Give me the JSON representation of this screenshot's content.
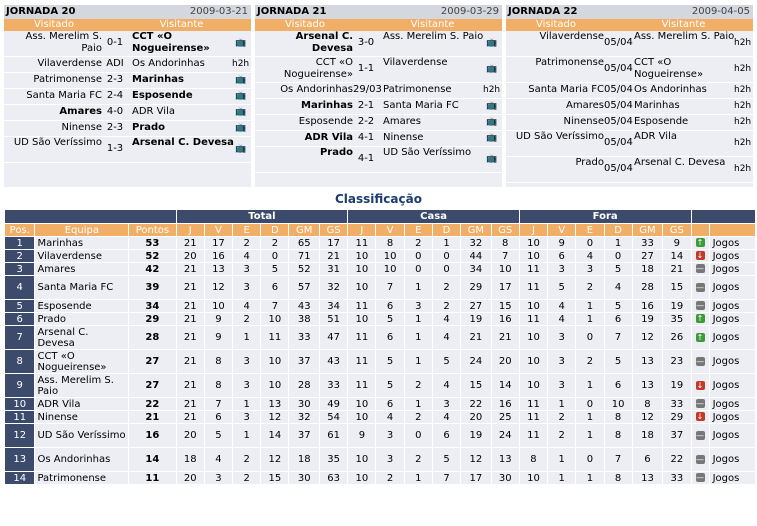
{
  "colors": {
    "header": "#d4d7de",
    "orange": "#f1ae66",
    "navy": "#3c4a6b",
    "rowbg": "#eceef3",
    "up": "#3f9b3a",
    "down": "#c23a2b",
    "equal": "#777777"
  },
  "jornadas": [
    {
      "title": "JORNADA 20",
      "date": "2009-03-21",
      "visited_label": "Visitado",
      "visitor_label": "Visitante",
      "games": [
        {
          "home": "Ass. Merelim S. Paio",
          "score": "0-1",
          "away": "CCT «O Nogueirense»",
          "extra": "tv-icon",
          "win": "away",
          "h": 2
        },
        {
          "home": "Vilaverdense",
          "score": "ADI",
          "away": "Os Andorinhas",
          "extra": "h2h",
          "win": "",
          "h": 1
        },
        {
          "home": "Patrimonense",
          "score": "2-3",
          "away": "Marinhas",
          "extra": "tv-icon",
          "win": "away",
          "h": 1
        },
        {
          "home": "Santa Maria FC",
          "score": "2-4",
          "away": "Esposende",
          "extra": "tv-icon",
          "win": "away",
          "h": 1
        },
        {
          "home": "Amares",
          "score": "4-0",
          "away": "ADR Vila",
          "extra": "tv-icon",
          "win": "home",
          "h": 1
        },
        {
          "home": "Ninense",
          "score": "2-3",
          "away": "Prado",
          "extra": "tv-icon",
          "win": "away",
          "h": 1
        },
        {
          "home": "UD São Veríssimo",
          "score": "1-3",
          "away": "Arsenal C. Devesa",
          "extra": "tv-icon",
          "win": "away",
          "h": 2
        }
      ]
    },
    {
      "title": "JORNADA 21",
      "date": "2009-03-29",
      "visited_label": "Visitado",
      "visitor_label": "Visitante",
      "games": [
        {
          "home": "Arsenal C. Devesa",
          "score": "3-0",
          "away": "Ass. Merelim S. Paio",
          "extra": "tv-icon",
          "win": "home",
          "h": 2
        },
        {
          "home": "CCT «O Nogueirense»",
          "score": "1-1",
          "away": "Vilaverdense",
          "extra": "tv-icon",
          "win": "",
          "h": 2
        },
        {
          "home": "Os Andorinhas",
          "score": "29/03",
          "away": "Patrimonense",
          "extra": "h2h",
          "win": "",
          "h": 1
        },
        {
          "home": "Marinhas",
          "score": "2-1",
          "away": "Santa Maria FC",
          "extra": "tv-icon",
          "win": "home",
          "h": 1
        },
        {
          "home": "Esposende",
          "score": "2-2",
          "away": "Amares",
          "extra": "tv-icon",
          "win": "",
          "h": 1
        },
        {
          "home": "ADR Vila",
          "score": "4-1",
          "away": "Ninense",
          "extra": "tv-icon",
          "win": "home",
          "h": 1
        },
        {
          "home": "Prado",
          "score": "4-1",
          "away": "UD São Veríssimo",
          "extra": "tv-icon",
          "win": "home",
          "h": 2
        }
      ]
    },
    {
      "title": "JORNADA 22",
      "date": "2009-04-05",
      "visited_label": "Visitado",
      "visitor_label": "Visitante",
      "games": [
        {
          "home": "Vilaverdense",
          "score": "05/04",
          "away": "Ass. Merelim S. Paio",
          "extra": "h2h",
          "win": "",
          "h": 2
        },
        {
          "home": "Patrimonense",
          "score": "05/04",
          "away": "CCT «O Nogueirense»",
          "extra": "h2h",
          "win": "",
          "h": 2
        },
        {
          "home": "Santa Maria FC",
          "score": "05/04",
          "away": "Os Andorinhas",
          "extra": "h2h",
          "win": "",
          "h": 1
        },
        {
          "home": "Amares",
          "score": "05/04",
          "away": "Marinhas",
          "extra": "h2h",
          "win": "",
          "h": 1
        },
        {
          "home": "Ninense",
          "score": "05/04",
          "away": "Esposende",
          "extra": "h2h",
          "win": "",
          "h": 1
        },
        {
          "home": "UD São Veríssimo",
          "score": "05/04",
          "away": "ADR Vila",
          "extra": "h2h",
          "win": "",
          "h": 2
        },
        {
          "home": "Prado",
          "score": "05/04",
          "away": "Arsenal C. Devesa",
          "extra": "h2h",
          "win": "",
          "h": 2
        }
      ]
    }
  ],
  "classificacao": {
    "title": "Classificação",
    "groups": {
      "total": "Total",
      "casa": "Casa",
      "fora": "Fora"
    },
    "cols": {
      "pos": "Pos.",
      "team": "Equipa",
      "points": "Pontos",
      "sub": [
        "J",
        "V",
        "E",
        "D",
        "GM",
        "GS"
      ]
    },
    "link_label": "Jogos",
    "rows": [
      {
        "pos": "1",
        "team": "Marinhas",
        "pts": "53",
        "total": [
          "21",
          "17",
          "2",
          "2",
          "65",
          "17"
        ],
        "casa": [
          "11",
          "8",
          "2",
          "1",
          "32",
          "8"
        ],
        "fora": [
          "10",
          "9",
          "0",
          "1",
          "33",
          "9"
        ],
        "trend": "up",
        "h": 1
      },
      {
        "pos": "2",
        "team": "Vilaverdense",
        "pts": "52",
        "total": [
          "20",
          "16",
          "4",
          "0",
          "71",
          "21"
        ],
        "casa": [
          "10",
          "10",
          "0",
          "0",
          "44",
          "7"
        ],
        "fora": [
          "10",
          "6",
          "4",
          "0",
          "27",
          "14"
        ],
        "trend": "down",
        "h": 1
      },
      {
        "pos": "3",
        "team": "Amares",
        "pts": "42",
        "total": [
          "21",
          "13",
          "3",
          "5",
          "52",
          "31"
        ],
        "casa": [
          "10",
          "10",
          "0",
          "0",
          "34",
          "10"
        ],
        "fora": [
          "11",
          "3",
          "3",
          "5",
          "18",
          "21"
        ],
        "trend": "eq",
        "h": 1
      },
      {
        "pos": "4",
        "team": "Santa Maria FC",
        "pts": "39",
        "total": [
          "21",
          "12",
          "3",
          "6",
          "57",
          "32"
        ],
        "casa": [
          "10",
          "7",
          "1",
          "2",
          "29",
          "17"
        ],
        "fora": [
          "11",
          "5",
          "2",
          "4",
          "28",
          "15"
        ],
        "trend": "eq",
        "h": 2
      },
      {
        "pos": "5",
        "team": "Esposende",
        "pts": "34",
        "total": [
          "21",
          "10",
          "4",
          "7",
          "43",
          "34"
        ],
        "casa": [
          "11",
          "6",
          "3",
          "2",
          "27",
          "15"
        ],
        "fora": [
          "10",
          "4",
          "1",
          "5",
          "16",
          "19"
        ],
        "trend": "eq",
        "h": 1
      },
      {
        "pos": "6",
        "team": "Prado",
        "pts": "29",
        "total": [
          "21",
          "9",
          "2",
          "10",
          "38",
          "51"
        ],
        "casa": [
          "10",
          "5",
          "1",
          "4",
          "19",
          "16"
        ],
        "fora": [
          "11",
          "4",
          "1",
          "6",
          "19",
          "35"
        ],
        "trend": "up",
        "h": 1
      },
      {
        "pos": "7",
        "team": "Arsenal C. Devesa",
        "pts": "28",
        "total": [
          "21",
          "9",
          "1",
          "11",
          "33",
          "47"
        ],
        "casa": [
          "11",
          "6",
          "1",
          "4",
          "21",
          "21"
        ],
        "fora": [
          "10",
          "3",
          "0",
          "7",
          "12",
          "26"
        ],
        "trend": "up",
        "h": 2
      },
      {
        "pos": "8",
        "team": "CCT «O Nogueirense»",
        "pts": "27",
        "total": [
          "21",
          "8",
          "3",
          "10",
          "37",
          "43"
        ],
        "casa": [
          "11",
          "5",
          "1",
          "5",
          "24",
          "20"
        ],
        "fora": [
          "10",
          "3",
          "2",
          "5",
          "13",
          "23"
        ],
        "trend": "eq",
        "h": 2
      },
      {
        "pos": "9",
        "team": "Ass. Merelim S. Paio",
        "pts": "27",
        "total": [
          "21",
          "8",
          "3",
          "10",
          "28",
          "33"
        ],
        "casa": [
          "11",
          "5",
          "2",
          "4",
          "15",
          "14"
        ],
        "fora": [
          "10",
          "3",
          "1",
          "6",
          "13",
          "19"
        ],
        "trend": "down",
        "h": 2
      },
      {
        "pos": "10",
        "team": "ADR Vila",
        "pts": "22",
        "total": [
          "21",
          "7",
          "1",
          "13",
          "30",
          "49"
        ],
        "casa": [
          "10",
          "6",
          "1",
          "3",
          "22",
          "16"
        ],
        "fora": [
          "11",
          "1",
          "0",
          "10",
          "8",
          "33"
        ],
        "trend": "eq",
        "h": 1
      },
      {
        "pos": "11",
        "team": "Ninense",
        "pts": "21",
        "total": [
          "21",
          "6",
          "3",
          "12",
          "32",
          "54"
        ],
        "casa": [
          "10",
          "4",
          "2",
          "4",
          "20",
          "25"
        ],
        "fora": [
          "11",
          "2",
          "1",
          "8",
          "12",
          "29"
        ],
        "trend": "down",
        "h": 1
      },
      {
        "pos": "12",
        "team": "UD São Veríssimo",
        "pts": "16",
        "total": [
          "20",
          "5",
          "1",
          "14",
          "37",
          "61"
        ],
        "casa": [
          "9",
          "3",
          "0",
          "6",
          "19",
          "24"
        ],
        "fora": [
          "11",
          "2",
          "1",
          "8",
          "18",
          "37"
        ],
        "trend": "eq",
        "h": 2
      },
      {
        "pos": "13",
        "team": "Os Andorinhas",
        "pts": "14",
        "total": [
          "18",
          "4",
          "2",
          "12",
          "18",
          "35"
        ],
        "casa": [
          "10",
          "3",
          "2",
          "5",
          "12",
          "13"
        ],
        "fora": [
          "8",
          "1",
          "0",
          "7",
          "6",
          "22"
        ],
        "trend": "eq",
        "h": 2
      },
      {
        "pos": "14",
        "team": "Patrimonense",
        "pts": "11",
        "total": [
          "20",
          "3",
          "2",
          "15",
          "30",
          "63"
        ],
        "casa": [
          "10",
          "2",
          "1",
          "7",
          "17",
          "30"
        ],
        "fora": [
          "10",
          "1",
          "1",
          "8",
          "13",
          "33"
        ],
        "trend": "eq",
        "h": 1
      }
    ]
  }
}
